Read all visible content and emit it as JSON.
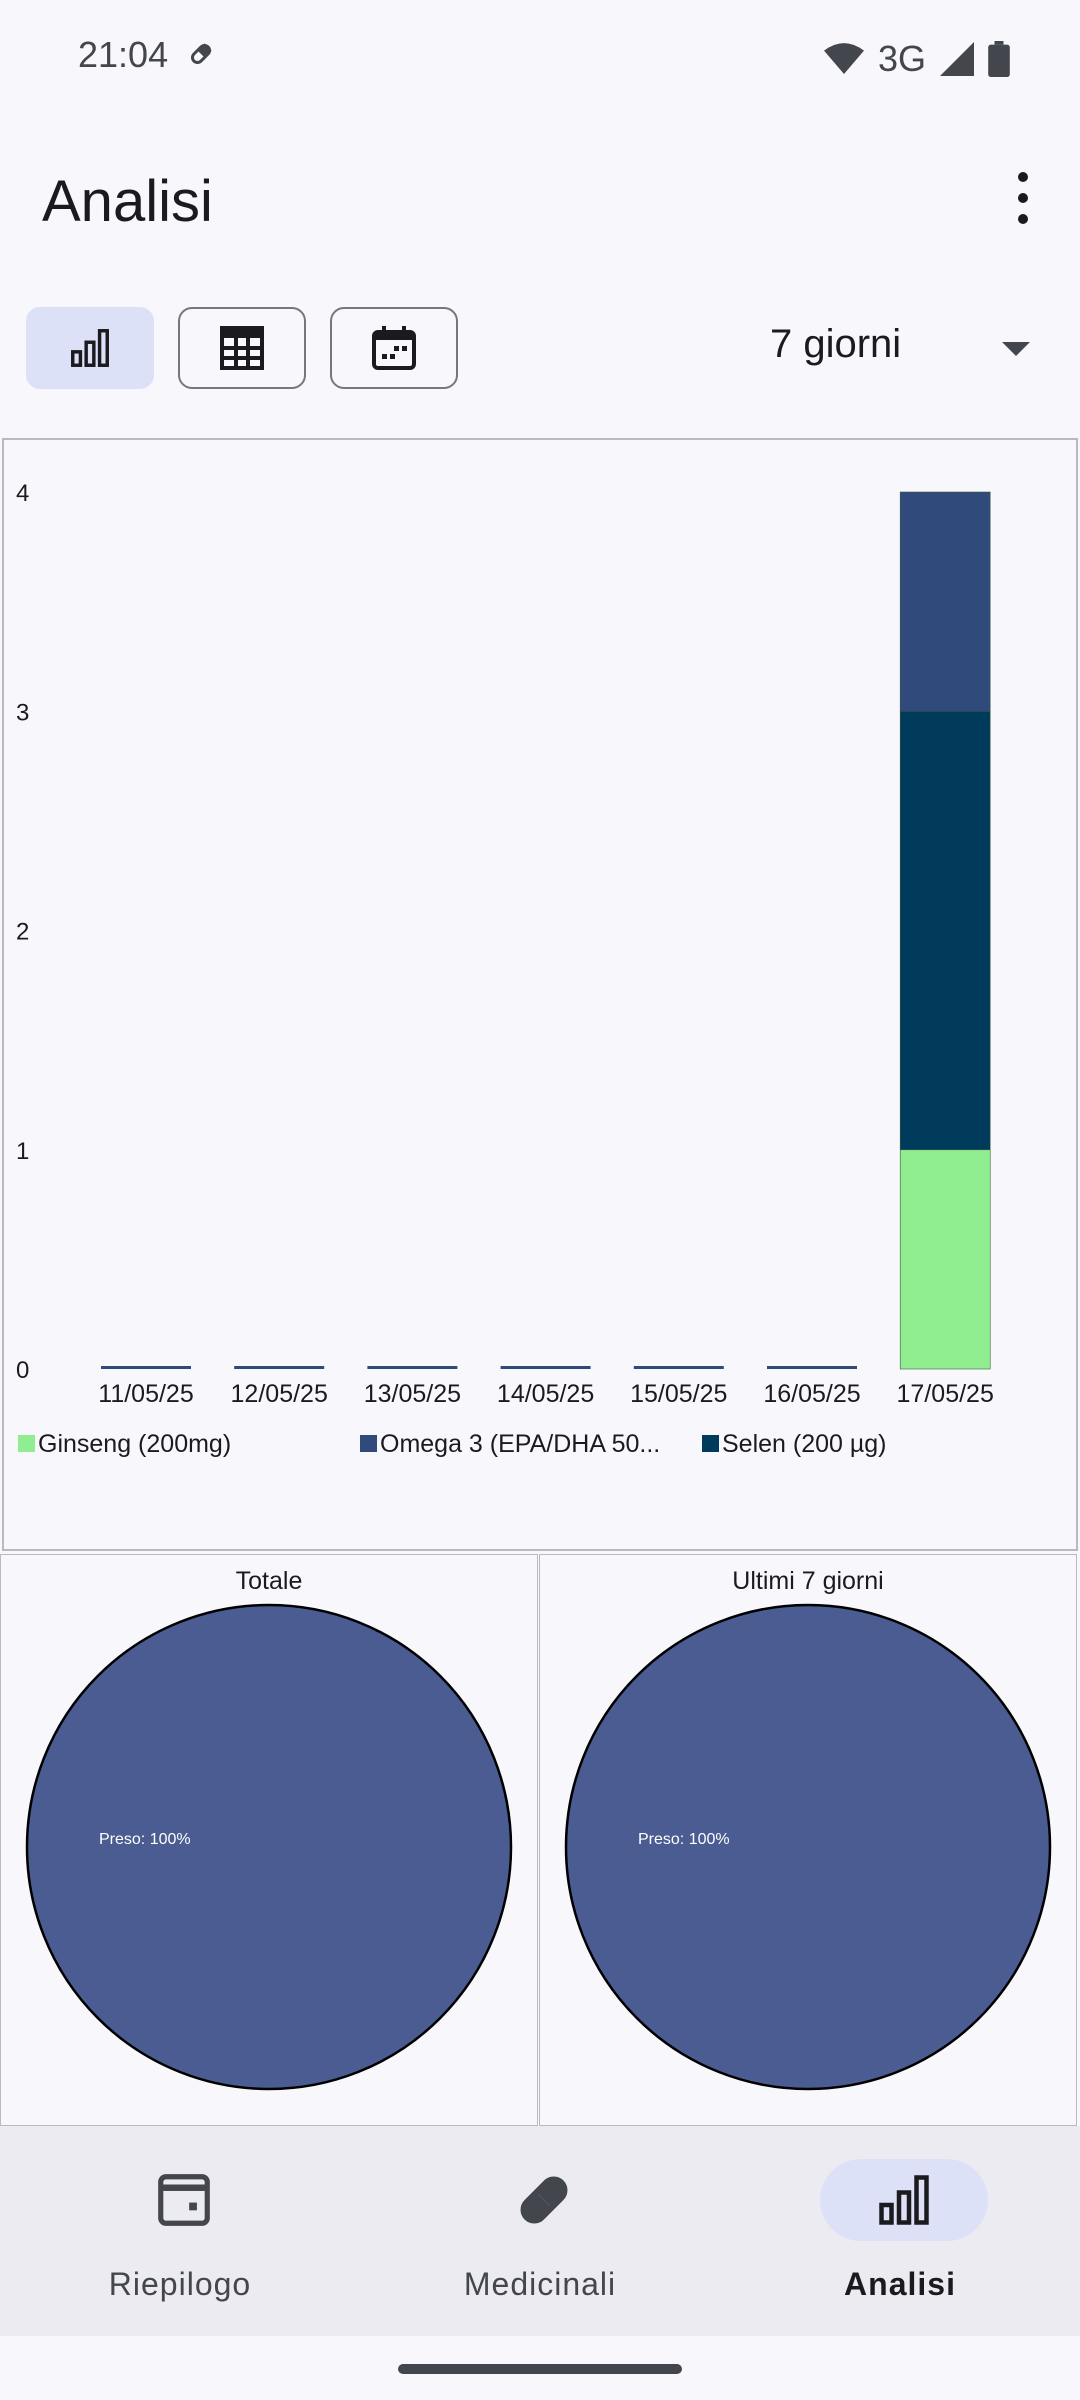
{
  "status_bar": {
    "time": "21:04",
    "network": "3G"
  },
  "app_bar": {
    "title": "Analisi"
  },
  "view_toggle": {
    "selected": "bar-chart"
  },
  "period_select": {
    "value": "7 giorni"
  },
  "colors": {
    "ginseng": "#90ee90",
    "omega3": "#2f4a7b",
    "selen": "#003b5c",
    "pie": "#4a5c91",
    "accent_pill": "#dce1f7"
  },
  "chart_data": {
    "type": "bar",
    "stacked": true,
    "categories": [
      "11/05/25",
      "12/05/25",
      "13/05/25",
      "14/05/25",
      "15/05/25",
      "16/05/25",
      "17/05/25"
    ],
    "series": [
      {
        "name": "Ginseng (200mg)",
        "color": "#90ee90",
        "values": [
          0,
          0,
          0,
          0,
          0,
          0,
          1
        ]
      },
      {
        "name": "Selen (200 µg)",
        "color": "#003b5c",
        "values": [
          0,
          0,
          0,
          0,
          0,
          0,
          2
        ]
      },
      {
        "name": "Omega 3 (EPA/DHA 50...",
        "color": "#2f4a7b",
        "values": [
          0,
          0,
          0,
          0,
          0,
          0,
          1
        ]
      }
    ],
    "legend_order": [
      "Ginseng (200mg)",
      "Omega 3 (EPA/DHA 50...",
      "Selen (200 µg)"
    ],
    "legend_colors": [
      "#90ee90",
      "#2f4a7b",
      "#003b5c"
    ],
    "y_ticks": [
      "0",
      "1",
      "2",
      "3",
      "4"
    ],
    "ylim": [
      0,
      4
    ],
    "legend_position": "bottom",
    "grid": false
  },
  "pies": [
    {
      "title": "Totale",
      "type": "pie",
      "slices": [
        {
          "label": "Preso: 100%",
          "value": 100
        }
      ]
    },
    {
      "title": "Ultimi 7 giorni",
      "type": "pie",
      "slices": [
        {
          "label": "Preso: 100%",
          "value": 100
        }
      ]
    }
  ],
  "bottom_nav": {
    "items": [
      {
        "label": "Riepilogo",
        "icon": "calendar-card-icon",
        "active": false
      },
      {
        "label": "Medicinali",
        "icon": "pill-icon",
        "active": false
      },
      {
        "label": "Analisi",
        "icon": "bar-chart-icon",
        "active": true
      }
    ]
  }
}
